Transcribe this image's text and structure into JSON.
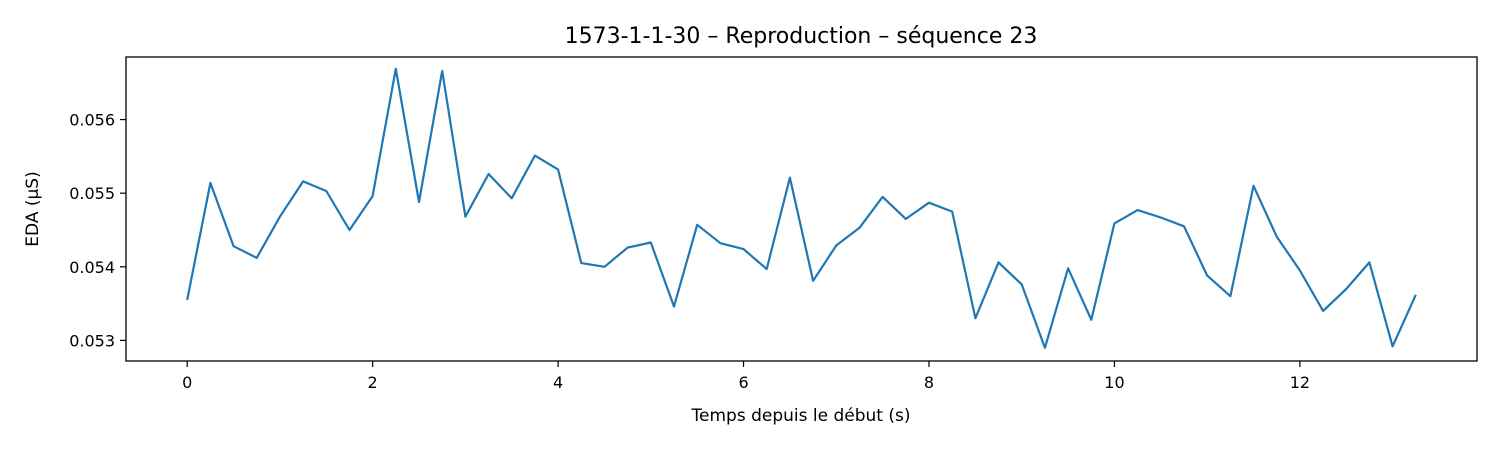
{
  "chart_data": {
    "type": "line",
    "title": "1573-1-1-30 – Reproduction – séquence 23",
    "xlabel": "Temps depuis le début (s)",
    "ylabel": "EDA (µS)",
    "xlim": [
      -0.66,
      13.91
    ],
    "ylim": [
      0.05272,
      0.05685
    ],
    "xticks": [
      0,
      2,
      4,
      6,
      8,
      10,
      12
    ],
    "yticks": [
      0.053,
      0.054,
      0.055,
      0.056
    ],
    "ytick_labels": [
      "0.053",
      "0.054",
      "0.055",
      "0.056"
    ],
    "grid": false,
    "line_color": "#1f77b4",
    "series": [
      {
        "x": [
          0,
          0.25,
          0.5,
          0.75,
          1.0,
          1.25,
          1.5,
          1.75,
          2.0,
          2.25,
          2.5,
          2.75,
          3.0,
          3.25,
          3.5,
          3.75,
          4.0,
          4.25,
          4.5,
          4.75,
          5.0,
          5.25,
          5.5,
          5.75,
          6.0,
          6.25,
          6.5,
          6.75,
          7.0,
          7.25,
          7.5,
          7.75,
          8.0,
          8.25,
          8.5,
          8.75,
          9.0,
          9.25,
          9.5,
          9.75,
          10.0,
          10.25,
          10.5,
          10.75,
          11.0,
          11.25,
          11.5,
          11.75,
          12.0,
          12.25,
          12.5,
          12.75,
          13.0,
          13.25
        ],
        "values": [
          0.05355,
          0.05514,
          0.05428,
          0.05412,
          0.05468,
          0.05516,
          0.05503,
          0.0545,
          0.05496,
          0.05669,
          0.05488,
          0.05666,
          0.05468,
          0.05526,
          0.05493,
          0.05551,
          0.05532,
          0.05405,
          0.054,
          0.05426,
          0.05433,
          0.05346,
          0.05457,
          0.05432,
          0.05424,
          0.05397,
          0.05521,
          0.05381,
          0.05429,
          0.05453,
          0.05495,
          0.05465,
          0.05487,
          0.05475,
          0.0533,
          0.05406,
          0.05376,
          0.0529,
          0.05398,
          0.05328,
          0.05459,
          0.05477,
          0.05467,
          0.05455,
          0.05388,
          0.0536,
          0.0551,
          0.05441,
          0.05395,
          0.0534,
          0.0537,
          0.05406,
          0.05292,
          0.05362
        ]
      }
    ]
  }
}
